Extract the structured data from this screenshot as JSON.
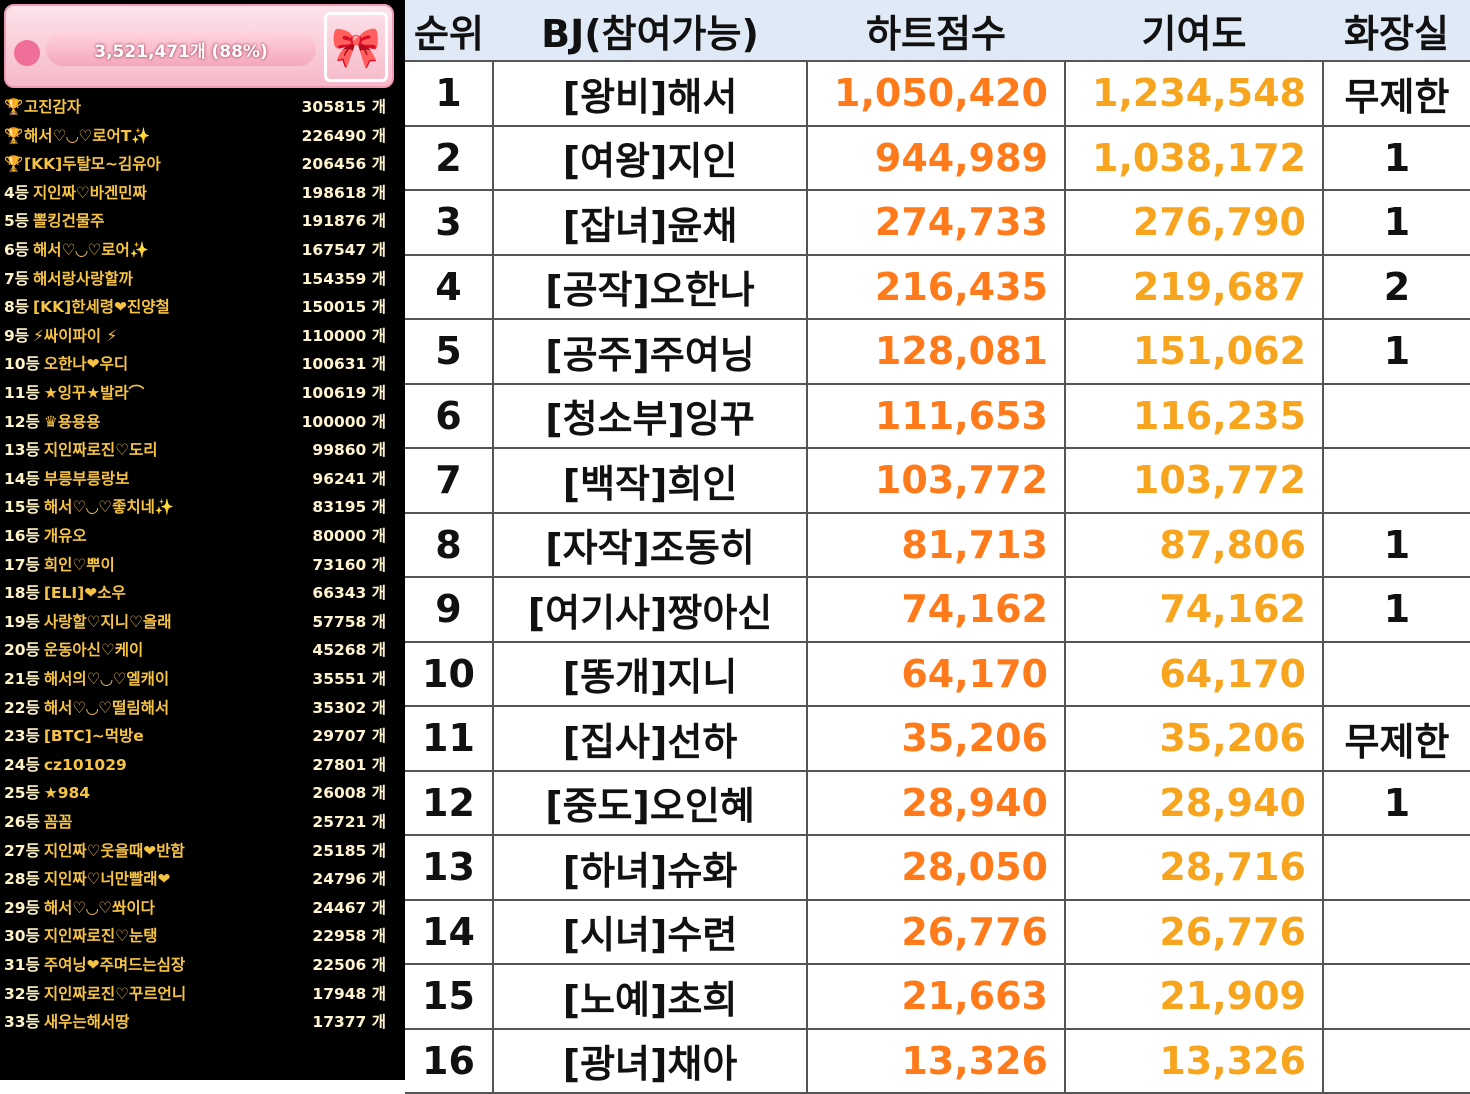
{
  "left": {
    "progress": "3,521,471개 (88%)",
    "ranking": [
      {
        "name": "고진감자",
        "amount": "305815 개"
      },
      {
        "name": "해서♡◡♡로어T✨",
        "amount": "226490 개"
      },
      {
        "name": "[KK]두탈모~김유아",
        "amount": "206456 개"
      },
      {
        "rank": "4등",
        "name": "지인짜♡바겐민짜",
        "amount": "198618 개"
      },
      {
        "rank": "5등",
        "name": "뽈킹건물주",
        "amount": "191876 개"
      },
      {
        "rank": "6등",
        "name": "해서♡◡♡로어✨",
        "amount": "167547 개"
      },
      {
        "rank": "7등",
        "name": "해서랑사랑할까",
        "amount": "154359 개"
      },
      {
        "rank": "8등",
        "name": "[KK]한세령❤진양철",
        "amount": "150015 개"
      },
      {
        "rank": "9등",
        "name": "⚡싸이파이 ⚡",
        "amount": "110000 개"
      },
      {
        "rank": "10등",
        "name": "오한나❤우디",
        "amount": "100631 개"
      },
      {
        "rank": "11등",
        "name": "★잉꾸★발라⌒",
        "amount": "100619 개"
      },
      {
        "rank": "12등",
        "name": "♛용용용",
        "amount": "100000 개"
      },
      {
        "rank": "13등",
        "name": "지인짜로진♡도리",
        "amount": "99860 개"
      },
      {
        "rank": "14등",
        "name": "부릉부릉랑보",
        "amount": "96241 개"
      },
      {
        "rank": "15등",
        "name": "해서♡◡♡좋치네✨",
        "amount": "83195 개"
      },
      {
        "rank": "16등",
        "name": "개유오",
        "amount": "80000 개"
      },
      {
        "rank": "17등",
        "name": "희인♡뿌이",
        "amount": "73160 개"
      },
      {
        "rank": "18등",
        "name": "[ELI]❤소우",
        "amount": "66343 개"
      },
      {
        "rank": "19등",
        "name": "사랑할♡지니♡올래",
        "amount": "57758 개"
      },
      {
        "rank": "20등",
        "name": "운동아신♡케이",
        "amount": "45268 개"
      },
      {
        "rank": "21등",
        "name": "해서의♡◡♡엘캐이",
        "amount": "35551 개"
      },
      {
        "rank": "22등",
        "name": "해서♡◡♡떨림해서",
        "amount": "35302 개"
      },
      {
        "rank": "23등",
        "name": "[BTC]~먹방e",
        "amount": "29707 개"
      },
      {
        "rank": "24등",
        "name": "cz101029",
        "amount": "27801 개"
      },
      {
        "rank": "25등",
        "name": "★984",
        "amount": "26008 개"
      },
      {
        "rank": "26등",
        "name": "꼼꼼",
        "amount": "25721 개"
      },
      {
        "rank": "27등",
        "name": "지인짜♡웃을때❤반함",
        "amount": "25185 개"
      },
      {
        "rank": "28등",
        "name": "지인짜♡너만빨래❤",
        "amount": "24796 개"
      },
      {
        "rank": "29등",
        "name": "해서♡◡♡쏴이다",
        "amount": "24467 개"
      },
      {
        "rank": "30등",
        "name": "지인짜로진♡눈탱",
        "amount": "22958 개"
      },
      {
        "rank": "31등",
        "name": "주여닝❤주며드는심장",
        "amount": "22506 개"
      },
      {
        "rank": "32등",
        "name": "지인짜로진♡꾸르언니",
        "amount": "17948 개"
      },
      {
        "rank": "33등",
        "name": "새우는해서땅",
        "amount": "17377 개"
      }
    ]
  },
  "table": {
    "headers": [
      "순위",
      "BJ(참여가능)",
      "하트점수",
      "기여도",
      "화장실"
    ],
    "rows": [
      {
        "rank": 1,
        "bj": "[왕비]해서",
        "heart": "1,050,420",
        "contrib": "1,234,548",
        "toilet": "무제한"
      },
      {
        "rank": 2,
        "bj": "[여왕]지인",
        "heart": "944,989",
        "contrib": "1,038,172",
        "toilet": "1"
      },
      {
        "rank": 3,
        "bj": "[잡녀]윤채",
        "heart": "274,733",
        "contrib": "276,790",
        "toilet": "1"
      },
      {
        "rank": 4,
        "bj": "[공작]오한나",
        "heart": "216,435",
        "contrib": "219,687",
        "toilet": "2"
      },
      {
        "rank": 5,
        "bj": "[공주]주여닝",
        "heart": "128,081",
        "contrib": "151,062",
        "toilet": "1"
      },
      {
        "rank": 6,
        "bj": "[청소부]잉꾸",
        "heart": "111,653",
        "contrib": "116,235"
      },
      {
        "rank": 7,
        "bj": "[백작]희인",
        "heart": "103,772",
        "contrib": "103,772"
      },
      {
        "rank": 8,
        "bj": "[자작]조동히",
        "heart": "81,713",
        "contrib": "87,806",
        "toilet": "1"
      },
      {
        "rank": 9,
        "bj": "[여기사]짱아신",
        "heart": "74,162",
        "contrib": "74,162",
        "toilet": "1"
      },
      {
        "rank": 10,
        "bj": "[똥개]지니",
        "heart": "64,170",
        "contrib": "64,170"
      },
      {
        "rank": 11,
        "bj": "[집사]선하",
        "heart": "35,206",
        "contrib": "35,206",
        "toilet": "무제한"
      },
      {
        "rank": 12,
        "bj": "[중도]오인혜",
        "heart": "28,940",
        "contrib": "28,940",
        "toilet": "1"
      },
      {
        "rank": 13,
        "bj": "[하녀]슈화",
        "heart": "28,050",
        "contrib": "28,716"
      },
      {
        "rank": 14,
        "bj": "[시녀]수련",
        "heart": "26,776",
        "contrib": "26,776"
      },
      {
        "rank": 15,
        "bj": "[노예]초희",
        "heart": "21,663",
        "contrib": "21,909"
      },
      {
        "rank": 16,
        "bj": "[광녀]채아",
        "heart": "13,326",
        "contrib": "13,326"
      }
    ]
  }
}
